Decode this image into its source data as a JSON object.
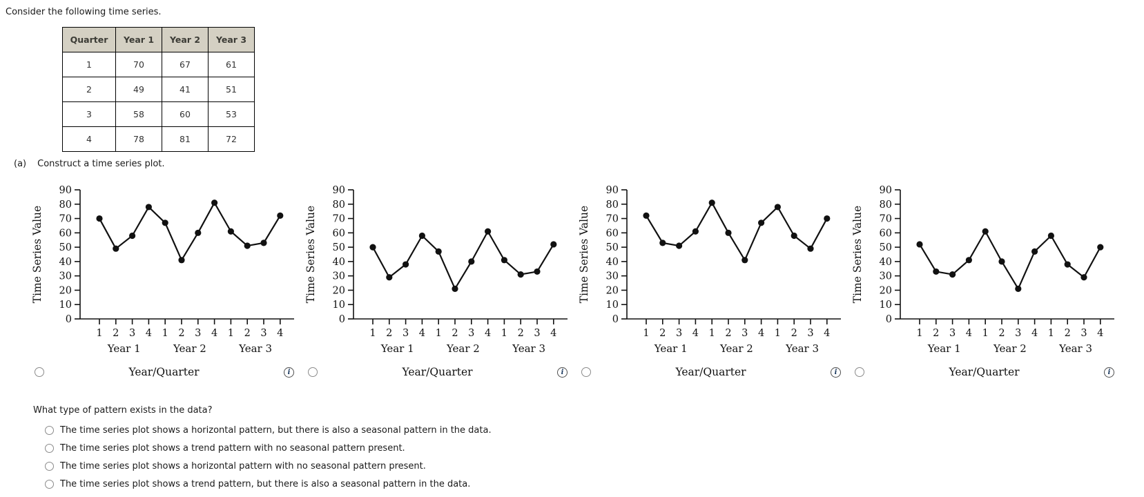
{
  "intro": "Consider the following time series.",
  "table": {
    "headers": [
      "Quarter",
      "Year 1",
      "Year 2",
      "Year 3"
    ],
    "rows": [
      [
        "1",
        "70",
        "67",
        "61"
      ],
      [
        "2",
        "49",
        "41",
        "51"
      ],
      [
        "3",
        "58",
        "60",
        "53"
      ],
      [
        "4",
        "78",
        "81",
        "72"
      ]
    ]
  },
  "part_a": {
    "label": "(a)",
    "text": "Construct a time series plot."
  },
  "chart_data": [
    {
      "type": "line",
      "name": "plot-option-1",
      "values": [
        70,
        49,
        58,
        78,
        67,
        41,
        60,
        81,
        61,
        51,
        53,
        72
      ],
      "x_tick_labels": [
        "1",
        "2",
        "3",
        "4",
        "1",
        "2",
        "3",
        "4",
        "1",
        "2",
        "3",
        "4"
      ],
      "year_group_labels": [
        "Year 1",
        "Year 2",
        "Year 3"
      ],
      "ylabel": "Time Series Value",
      "xlabel": "Year/Quarter",
      "ylim": [
        0,
        90
      ],
      "ytick_step": 10,
      "marker": "circle",
      "line_color": "#111111"
    },
    {
      "type": "line",
      "name": "plot-option-2",
      "values": [
        50,
        29,
        38,
        58,
        47,
        21,
        40,
        61,
        41,
        31,
        33,
        52
      ],
      "x_tick_labels": [
        "1",
        "2",
        "3",
        "4",
        "1",
        "2",
        "3",
        "4",
        "1",
        "2",
        "3",
        "4"
      ],
      "year_group_labels": [
        "Year 1",
        "Year 2",
        "Year 3"
      ],
      "ylabel": "Time Series Value",
      "xlabel": "Year/Quarter",
      "ylim": [
        0,
        90
      ],
      "ytick_step": 10,
      "marker": "circle",
      "line_color": "#111111"
    },
    {
      "type": "line",
      "name": "plot-option-3",
      "values": [
        72,
        53,
        51,
        61,
        81,
        60,
        41,
        67,
        78,
        58,
        49,
        70
      ],
      "x_tick_labels": [
        "1",
        "2",
        "3",
        "4",
        "1",
        "2",
        "3",
        "4",
        "1",
        "2",
        "3",
        "4"
      ],
      "year_group_labels": [
        "Year 1",
        "Year 2",
        "Year 3"
      ],
      "ylabel": "Time Series Value",
      "xlabel": "Year/Quarter",
      "ylim": [
        0,
        90
      ],
      "ytick_step": 10,
      "marker": "circle",
      "line_color": "#111111"
    },
    {
      "type": "line",
      "name": "plot-option-4",
      "values": [
        52,
        33,
        31,
        41,
        61,
        40,
        21,
        47,
        58,
        38,
        29,
        50
      ],
      "x_tick_labels": [
        "1",
        "2",
        "3",
        "4",
        "1",
        "2",
        "3",
        "4",
        "1",
        "2",
        "3",
        "4"
      ],
      "year_group_labels": [
        "Year 1",
        "Year 2",
        "Year 3"
      ],
      "ylabel": "Time Series Value",
      "xlabel": "Year/Quarter",
      "ylim": [
        0,
        90
      ],
      "ytick_step": 10,
      "marker": "circle",
      "line_color": "#111111"
    }
  ],
  "icons": {
    "info": "i"
  },
  "colors": {
    "line": "#111111",
    "table_header_bg": "#d4d0c3",
    "table_border": "#000000",
    "info_icon_text": "#17365d"
  },
  "question": {
    "text": "What type of pattern exists in the data?",
    "options": [
      {
        "label": "The time series plot shows a horizontal pattern, but there is also a seasonal pattern in the data."
      },
      {
        "label": "The time series plot shows a trend pattern with no seasonal pattern present."
      },
      {
        "label": "The time series plot shows a horizontal pattern with no seasonal pattern present."
      },
      {
        "label": "The time series plot shows a trend pattern, but there is also a seasonal pattern in the data."
      }
    ]
  }
}
